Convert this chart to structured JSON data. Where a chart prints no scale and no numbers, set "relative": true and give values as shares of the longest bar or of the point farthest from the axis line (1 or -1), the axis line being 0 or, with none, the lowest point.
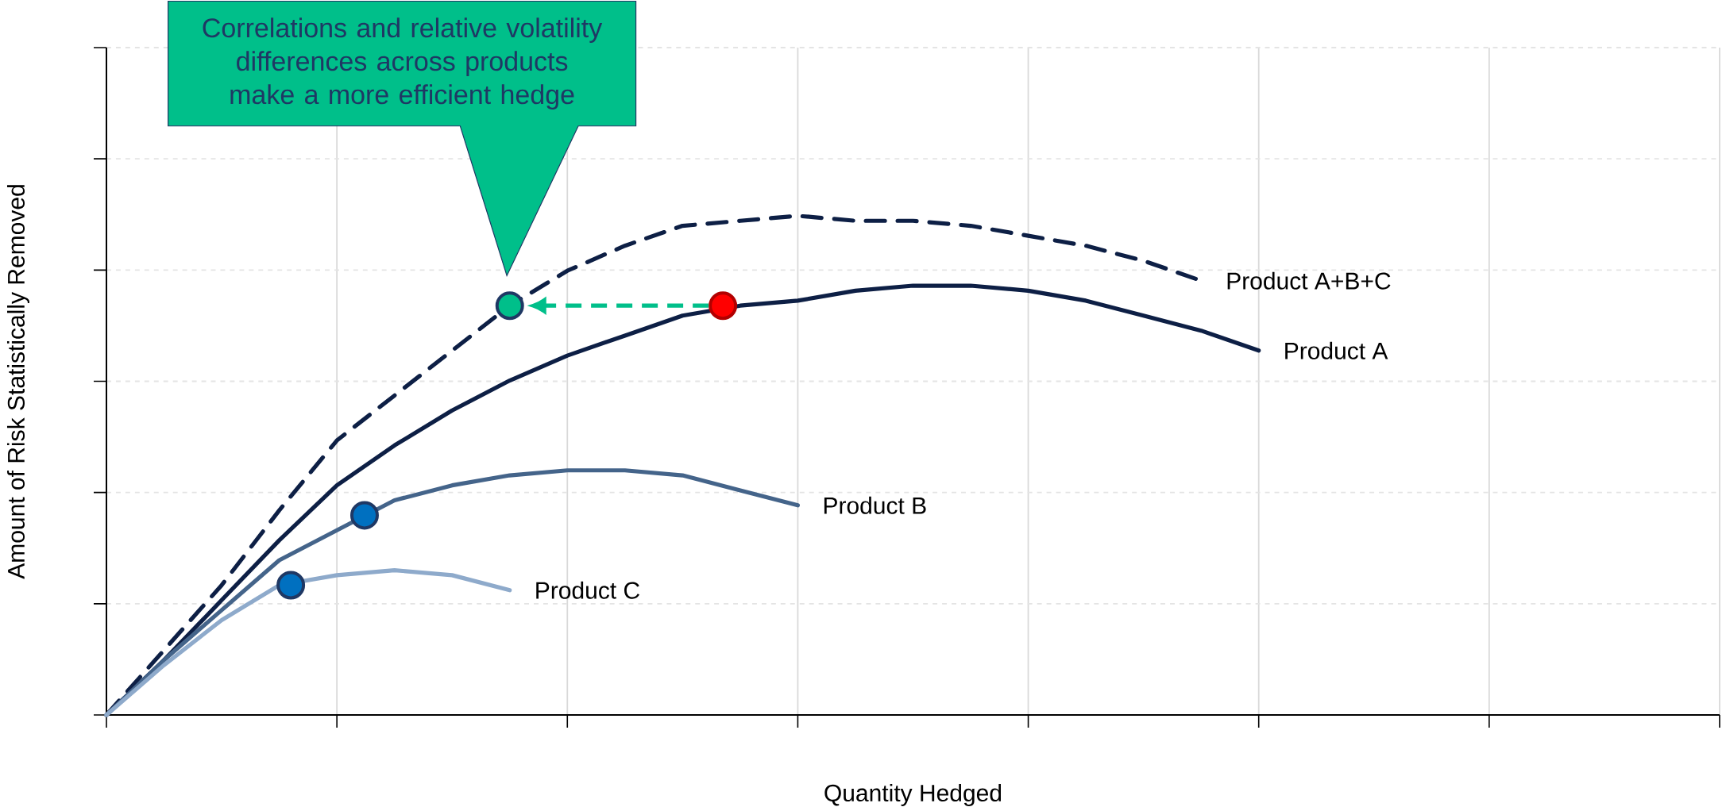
{
  "chart_data": {
    "type": "line",
    "relative": true,
    "xlabel": "Quantity Hedged",
    "ylabel": "Amount of Risk Statistically Removed",
    "annotations": [
      "Correlations and relative volatility differences across products make a more efficient hedge"
    ],
    "grid": true,
    "legend": false,
    "categories": [
      null,
      null,
      null,
      null,
      null,
      null,
      null,
      null,
      null,
      null,
      null,
      null,
      null,
      null,
      null,
      null,
      null,
      null,
      null,
      null,
      null,
      null,
      null,
      null,
      null,
      null,
      null,
      null,
      null
    ],
    "series": [
      {
        "name": "Product A+B+C",
        "color": "#0d1f45",
        "line_style": "dashed",
        "values": [
          0,
          0.13,
          0.26,
          0.41,
          0.55,
          0.64,
          0.73,
          0.82,
          0.89,
          0.94,
          0.98,
          0.99,
          1,
          0.99,
          0.99,
          0.98,
          0.96,
          0.94,
          0.91,
          0.87,
          null,
          null,
          null,
          null,
          null,
          null,
          null,
          null,
          null
        ]
      },
      {
        "name": "Product A",
        "color": "#0d1f45",
        "values": [
          0,
          0.11,
          0.23,
          0.35,
          0.46,
          0.54,
          0.61,
          0.67,
          0.72,
          0.76,
          0.8,
          0.82,
          0.83,
          0.85,
          0.86,
          0.86,
          0.85,
          0.83,
          0.8,
          0.77,
          0.73,
          null,
          null,
          null,
          null,
          null,
          null,
          null,
          null
        ]
      },
      {
        "name": "Product B",
        "color": "#44648a",
        "values": [
          0,
          0.11,
          0.21,
          0.31,
          0.37,
          0.43,
          0.46,
          0.48,
          0.49,
          0.49,
          0.48,
          0.45,
          0.42,
          null,
          null,
          null,
          null,
          null,
          null,
          null,
          null,
          null,
          null,
          null,
          null,
          null,
          null,
          null,
          null
        ]
      },
      {
        "name": "Product C",
        "color": "#8eaacb",
        "values": [
          0,
          0.1,
          0.19,
          0.26,
          0.28,
          0.29,
          0.28,
          0.25,
          null,
          null,
          null,
          null,
          null,
          null,
          null,
          null,
          null,
          null,
          null,
          null,
          null,
          null,
          null,
          null,
          null,
          null,
          null,
          null,
          null
        ]
      }
    ]
  }
}
